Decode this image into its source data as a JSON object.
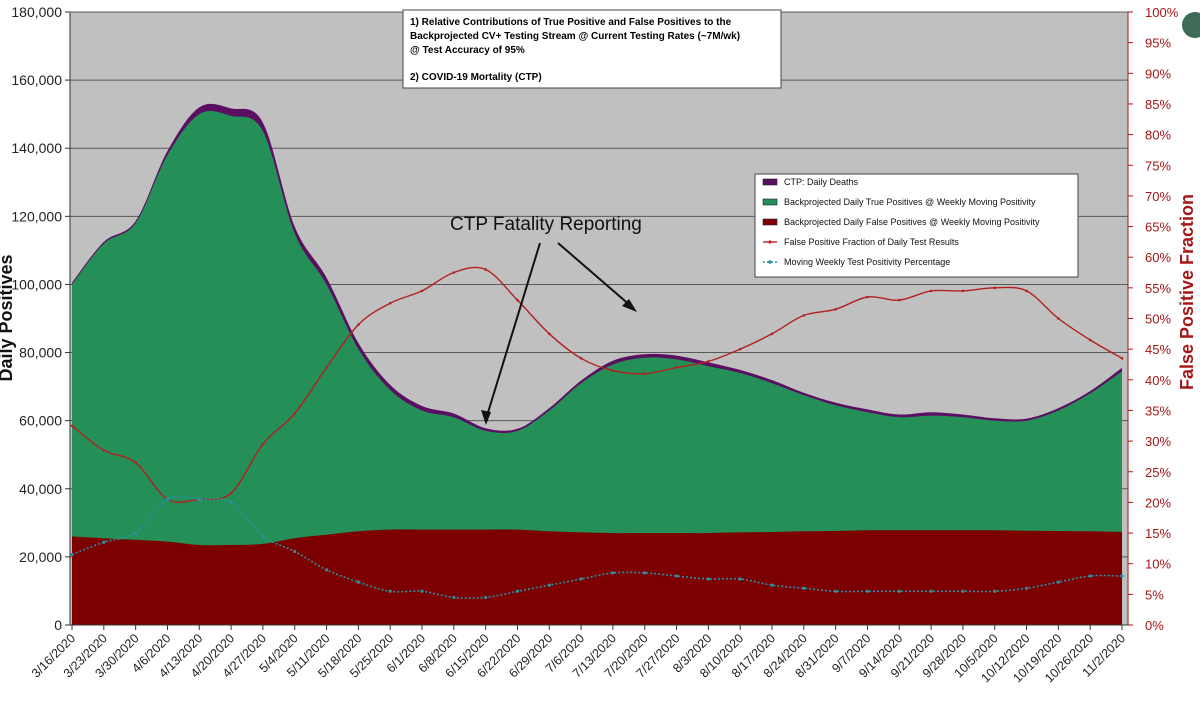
{
  "chart_data": {
    "type": "area",
    "note": {
      "line1": "1) Relative Contributions of True Positive and False Positives to the",
      "line2": "Backprojected CV+ Testing Stream @ Current Testing Rates (~7M/wk)",
      "line3": "@ Test Accuracy of 95%",
      "line4": "2) COVID-19 Mortality (CTP)"
    },
    "annotation": "CTP Fatality Reporting",
    "ylabel_left": "Daily Positives",
    "ylabel_right": "False Positive Fraction",
    "ylim_left": [
      0,
      180000
    ],
    "ylim_right": [
      0,
      100
    ],
    "left_ticks": [
      "0",
      "20,000",
      "40,000",
      "60,000",
      "80,000",
      "100,000",
      "120,000",
      "140,000",
      "160,000",
      "180,000"
    ],
    "right_ticks": [
      "0%",
      "5%",
      "10%",
      "15%",
      "20%",
      "25%",
      "30%",
      "35%",
      "40%",
      "45%",
      "50%",
      "55%",
      "60%",
      "65%",
      "70%",
      "75%",
      "80%",
      "85%",
      "90%",
      "95%",
      "100%"
    ],
    "categories": [
      "3/16/2020",
      "3/23/2020",
      "3/30/2020",
      "4/6/2020",
      "4/13/2020",
      "4/20/2020",
      "4/27/2020",
      "5/4/2020",
      "5/11/2020",
      "5/18/2020",
      "5/25/2020",
      "6/1/2020",
      "6/8/2020",
      "6/15/2020",
      "6/22/2020",
      "6/29/2020",
      "7/6/2020",
      "7/13/2020",
      "7/20/2020",
      "7/27/2020",
      "8/3/2020",
      "8/10/2020",
      "8/17/2020",
      "8/24/2020",
      "8/31/2020",
      "9/7/2020",
      "9/14/2020",
      "9/21/2020",
      "9/28/2020",
      "10/5/2020",
      "10/12/2020",
      "10/19/2020",
      "10/26/2020",
      "11/2/2020"
    ],
    "legend": [
      {
        "label": "CTP: Daily Deaths",
        "color": "#5b0f63",
        "kind": "area"
      },
      {
        "label": "Backprojected Daily True Positives @ Weekly Moving Positivity",
        "color": "#249058",
        "kind": "area"
      },
      {
        "label": "Backprojected Daily False Positives @ Weekly Moving Positivity",
        "color": "#7d0000",
        "kind": "area"
      },
      {
        "label": "False Positive Fraction of Daily Test Results",
        "color": "#b32020",
        "kind": "line"
      },
      {
        "label": "Moving Weekly Test Positivity Percentage",
        "color": "#2a8fa5",
        "kind": "dotted"
      }
    ],
    "series": [
      {
        "name": "Backprojected Daily False Positives @ Weekly Moving Positivity",
        "axis": "left",
        "values": [
          26000,
          25500,
          25000,
          24500,
          23500,
          23500,
          23800,
          25500,
          26500,
          27500,
          28000,
          28000,
          28000,
          28000,
          28000,
          27500,
          27200,
          27000,
          27000,
          27000,
          27000,
          27200,
          27300,
          27500,
          27600,
          27800,
          27800,
          27800,
          27800,
          27800,
          27700,
          27600,
          27500,
          27300
        ]
      },
      {
        "name": "Backprojected Daily True Positives @ Weekly Moving Positivity (stacked total)",
        "axis": "left",
        "values": [
          100000,
          112000,
          118000,
          138000,
          150000,
          149500,
          145000,
          115000,
          100000,
          81000,
          69000,
          63000,
          61000,
          57000,
          57000,
          63000,
          71000,
          76500,
          78500,
          78000,
          76000,
          74000,
          71000,
          67500,
          64500,
          62500,
          61000,
          61500,
          61000,
          60000,
          60000,
          63000,
          68000,
          74500
        ]
      },
      {
        "name": "CTP: Daily Deaths (stacked total)",
        "axis": "left",
        "values": [
          100500,
          112500,
          118600,
          139200,
          152000,
          151700,
          147500,
          117000,
          102000,
          82800,
          70500,
          64300,
          62100,
          57800,
          57600,
          63700,
          71800,
          77600,
          79500,
          79100,
          77100,
          74900,
          71900,
          68200,
          65300,
          63300,
          61800,
          62500,
          61800,
          60700,
          60600,
          63700,
          68700,
          75500
        ]
      },
      {
        "name": "False Positive Fraction of Daily Test Results",
        "axis": "right",
        "values": [
          32.5,
          28.5,
          26.5,
          20.5,
          20.5,
          21.5,
          29.5,
          34.5,
          42,
          49,
          52.5,
          54.5,
          57.5,
          58,
          53,
          47.5,
          43.5,
          41.5,
          41,
          42,
          43,
          45,
          47.5,
          50.5,
          51.5,
          53.5,
          53,
          54.5,
          54.5,
          55,
          54.5,
          50,
          46.5,
          43.5
        ]
      },
      {
        "name": "Moving Weekly Test Positivity Percentage",
        "axis": "right",
        "values": [
          11.5,
          13.5,
          15,
          20.5,
          20.5,
          20,
          14.5,
          12,
          9,
          7,
          5.5,
          5.5,
          4.5,
          4.5,
          5.5,
          6.5,
          7.5,
          8.5,
          8.5,
          8,
          7.5,
          7.5,
          6.5,
          6,
          5.5,
          5.5,
          5.5,
          5.5,
          5.5,
          5.5,
          6,
          7,
          8,
          8
        ]
      }
    ]
  }
}
